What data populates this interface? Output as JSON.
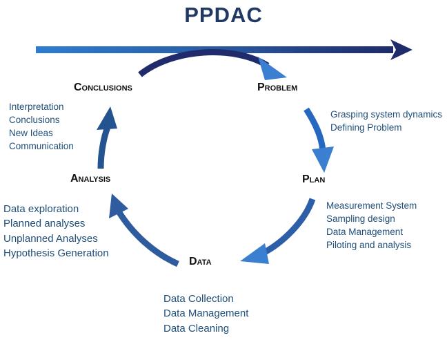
{
  "title": "PPDAC",
  "colors": {
    "title": "#1f3864",
    "arrow_dark": "#1f2b6b",
    "arrow_light": "#2e6fbf",
    "arrow_mid": "#2f5c9e",
    "note_text": "#1f4e79",
    "label_text": "#111111"
  },
  "stages": {
    "problem": {
      "label": "Problem",
      "notes": [
        "Grasping system dynamics",
        "Defining Problem"
      ]
    },
    "plan": {
      "label": "Plan",
      "notes": [
        "Measurement System",
        "Sampling design",
        "Data Management",
        "Piloting and analysis"
      ]
    },
    "data": {
      "label": "Data",
      "notes": [
        "Data Collection",
        "Data Management",
        "Data Cleaning"
      ]
    },
    "analysis": {
      "label": "Analysis",
      "notes": [
        "Data exploration",
        "Planned analyses",
        "Unplanned Analyses",
        "Hypothesis Generation"
      ]
    },
    "conclusions": {
      "label": "Conclusions",
      "notes": [
        "Interpretation",
        "Conclusions",
        "New Ideas",
        "Communication"
      ]
    }
  }
}
